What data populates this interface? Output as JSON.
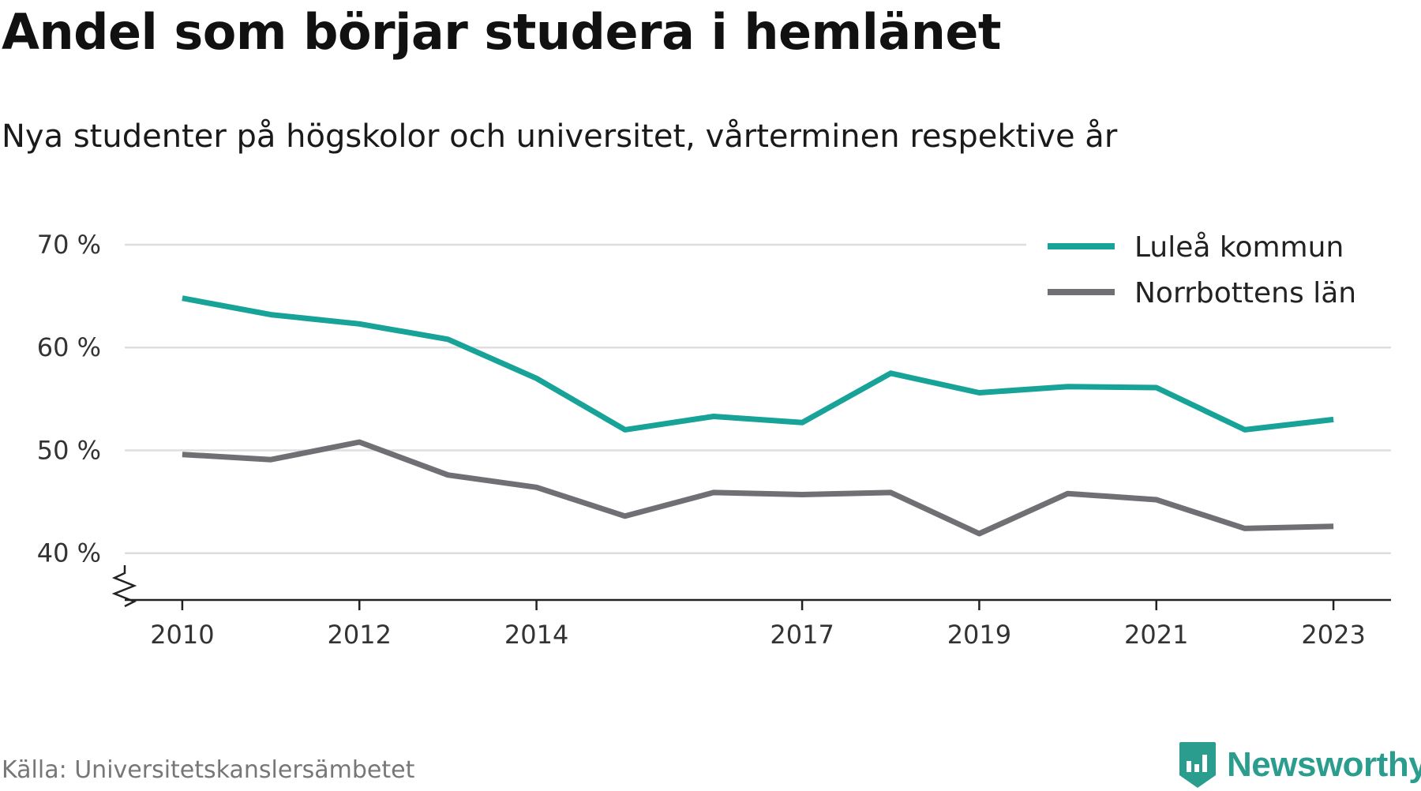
{
  "header": {
    "title": "Andel som börjar studera i hemlänet",
    "subtitle": "Nya studenter på högskolor och universitet, vårterminen respektive år"
  },
  "footer": {
    "source": "Källa: Universitetskanslersämbetet",
    "brand": "Newsworthy"
  },
  "icons": {
    "logo": "newsworthy-logo-icon",
    "axis_break": "axis-break-icon"
  },
  "chart_data": {
    "type": "line",
    "title": "Andel som börjar studera i hemlänet",
    "subtitle": "Nya studenter på högskolor och universitet, vårterminen respektive år",
    "xlabel": "",
    "ylabel": "",
    "x": [
      2010,
      2011,
      2012,
      2013,
      2014,
      2015,
      2016,
      2017,
      2018,
      2019,
      2020,
      2021,
      2022,
      2023
    ],
    "x_ticks": [
      2010,
      2012,
      2014,
      2017,
      2019,
      2021,
      2023
    ],
    "x_tick_labels": [
      "2010",
      "2012",
      "2014",
      "2017",
      "2019",
      "2021",
      "2023"
    ],
    "y_ticks": [
      40,
      50,
      60,
      70
    ],
    "y_tick_labels": [
      "40 %",
      "50 %",
      "60 %",
      "70 %"
    ],
    "ylim": [
      35.6,
      70
    ],
    "xlim": [
      2009.35,
      2023.65
    ],
    "y_axis_break": true,
    "grid": true,
    "legend_position": "top-right",
    "series": [
      {
        "name": "Luleå kommun",
        "color": "#17a398",
        "values": [
          64.8,
          63.2,
          62.3,
          60.8,
          57.0,
          52.0,
          53.3,
          52.7,
          57.5,
          55.6,
          56.2,
          56.1,
          52.0,
          53.0
        ]
      },
      {
        "name": "Norrbottens län",
        "color": "#707074",
        "values": [
          49.6,
          49.1,
          50.8,
          47.6,
          46.4,
          43.6,
          45.9,
          45.7,
          45.9,
          41.9,
          45.8,
          45.2,
          42.4,
          42.6
        ]
      }
    ]
  }
}
